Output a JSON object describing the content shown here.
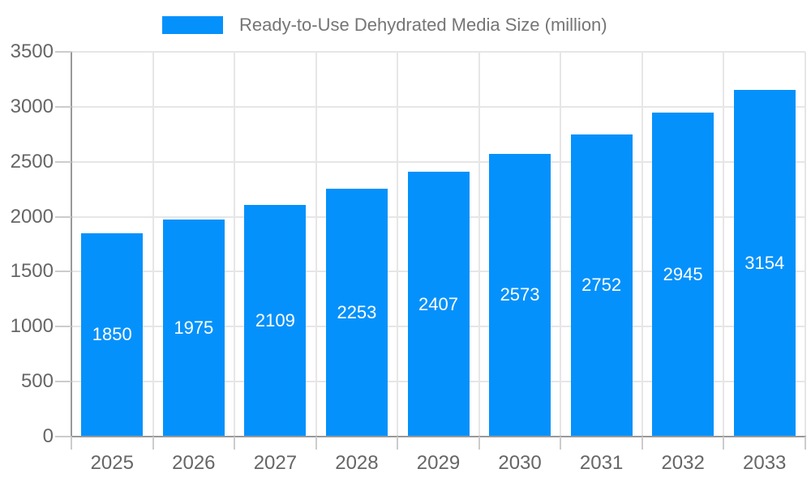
{
  "chart_data": {
    "type": "bar",
    "title": "Ready-to-Use Dehydrated Media Size (million)",
    "series_name": "Ready-to-Use Dehydrated Media Size (million)",
    "categories": [
      "2025",
      "2026",
      "2027",
      "2028",
      "2029",
      "2030",
      "2031",
      "2032",
      "2033"
    ],
    "values": [
      1850,
      1975,
      2109,
      2253,
      2407,
      2573,
      2752,
      2945,
      3154
    ],
    "xlabel": "",
    "ylabel": "",
    "ylim": [
      0,
      3500
    ],
    "ytick_step": 500,
    "grid": true,
    "legend_position": "top",
    "value_labels": "inside-center",
    "colors": {
      "bar": "#0591fb",
      "value_label": "#ffffff",
      "axis_text": "#666666",
      "legend_text": "#757575",
      "grid_line": "#e6e6e6",
      "axis_line": "#999999",
      "tick": "#cccccc",
      "background": "#ffffff"
    }
  }
}
